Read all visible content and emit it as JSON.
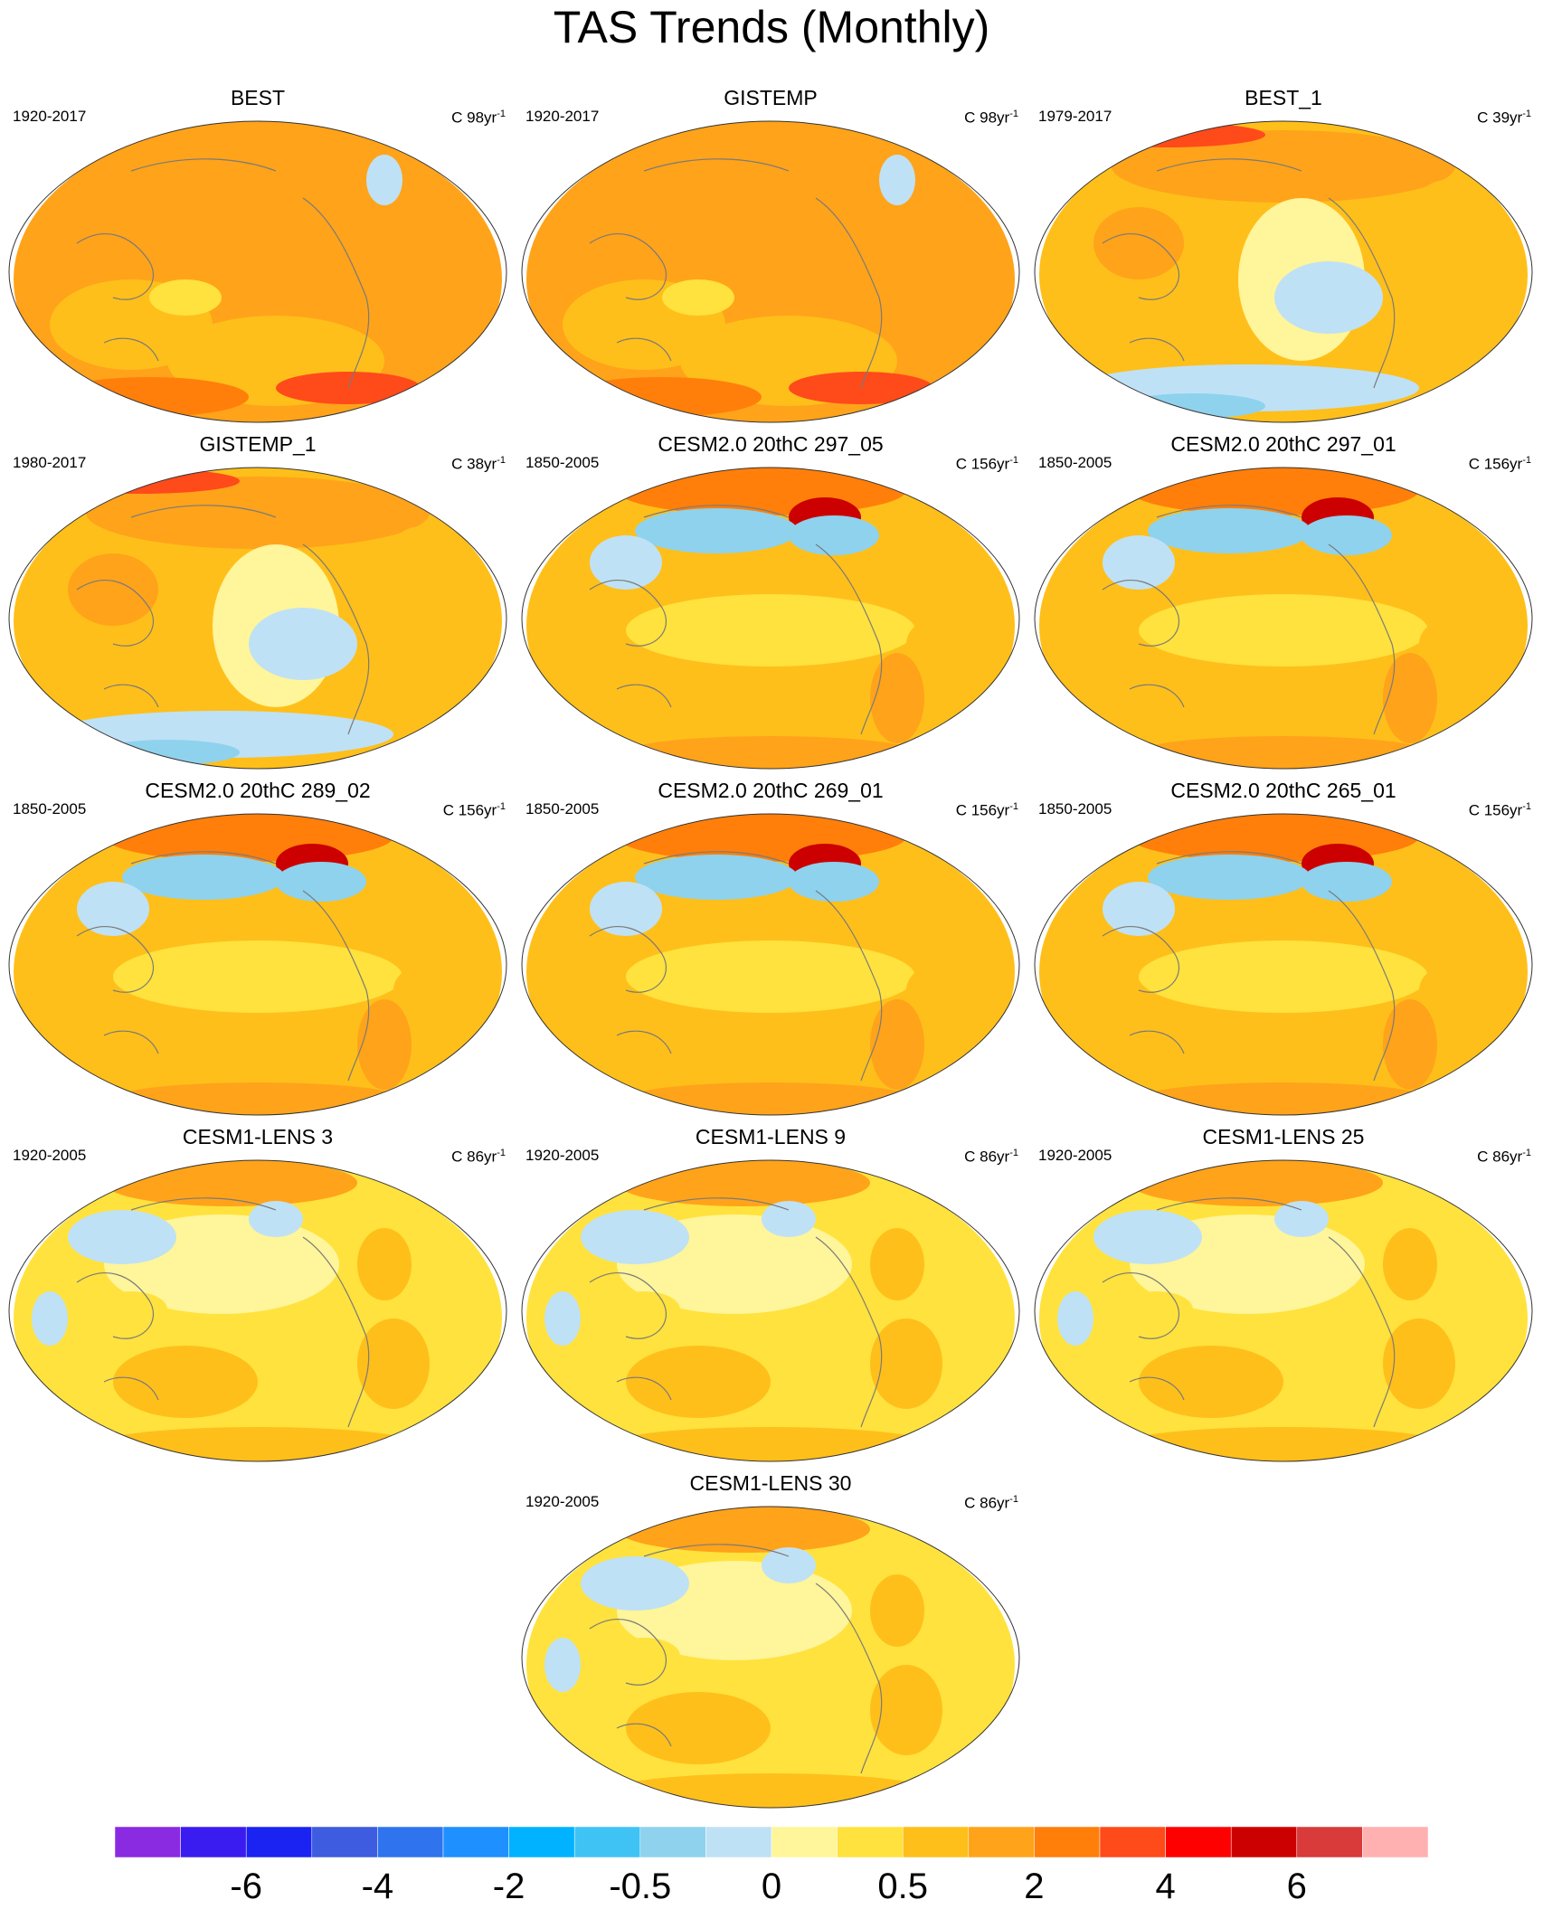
{
  "title": "TAS Trends (Monthly)",
  "chart_data": {
    "type": "heatmap",
    "description_units": "C",
    "panels": [
      {
        "name": "BEST",
        "years": "1920-2017",
        "units_prefix": "C 98yr",
        "units_exp": "-1",
        "pattern": "obs"
      },
      {
        "name": "GISTEMP",
        "years": "1920-2017",
        "units_prefix": "C 98yr",
        "units_exp": "-1",
        "pattern": "obs"
      },
      {
        "name": "BEST_1",
        "years": "1979-2017",
        "units_prefix": "C 39yr",
        "units_exp": "-1",
        "pattern": "recent"
      },
      {
        "name": "GISTEMP_1",
        "years": "1980-2017",
        "units_prefix": "C 38yr",
        "units_exp": "-1",
        "pattern": "recent"
      },
      {
        "name": "CESM2.0 20thC 297_05",
        "years": "1850-2005",
        "units_prefix": "C 156yr",
        "units_exp": "-1",
        "pattern": "cesm2"
      },
      {
        "name": "CESM2.0 20thC 297_01",
        "years": "1850-2005",
        "units_prefix": "C 156yr",
        "units_exp": "-1",
        "pattern": "cesm2"
      },
      {
        "name": "CESM2.0 20thC 289_02",
        "years": "1850-2005",
        "units_prefix": "C 156yr",
        "units_exp": "-1",
        "pattern": "cesm2"
      },
      {
        "name": "CESM2.0 20thC 269_01",
        "years": "1850-2005",
        "units_prefix": "C 156yr",
        "units_exp": "-1",
        "pattern": "cesm2"
      },
      {
        "name": "CESM2.0 20thC 265_01",
        "years": "1850-2005",
        "units_prefix": "C 156yr",
        "units_exp": "-1",
        "pattern": "cesm2"
      },
      {
        "name": "CESM1-LENS 3",
        "years": "1920-2005",
        "units_prefix": "C 86yr",
        "units_exp": "-1",
        "pattern": "lens"
      },
      {
        "name": "CESM1-LENS 9",
        "years": "1920-2005",
        "units_prefix": "C 86yr",
        "units_exp": "-1",
        "pattern": "lens"
      },
      {
        "name": "CESM1-LENS 25",
        "years": "1920-2005",
        "units_prefix": "C 86yr",
        "units_exp": "-1",
        "pattern": "lens"
      },
      {
        "name": "CESM1-LENS 30",
        "years": "1920-2005",
        "units_prefix": "C 86yr",
        "units_exp": "-1",
        "pattern": "lens"
      }
    ],
    "colorbar": {
      "colors": [
        "#8a2be2",
        "#3b1cf0",
        "#1a23f2",
        "#3d5ce0",
        "#2f74ee",
        "#1e90ff",
        "#00b2ff",
        "#3fc3f5",
        "#8ed2ee",
        "#bfe1f5",
        "#fff59a",
        "#ffe23d",
        "#ffbf1a",
        "#ffa31a",
        "#ff7f0a",
        "#ff4a1a",
        "#ff0000",
        "#cc0000",
        "#d93a3a",
        "#ffb0b0"
      ],
      "tick_labels": [
        "-6",
        "-4",
        "-2",
        "-0.5",
        "0",
        "0.5",
        "2",
        "4",
        "6"
      ],
      "tick_boundary_index": [
        2,
        4,
        6,
        8,
        10,
        12,
        14,
        16,
        18
      ]
    }
  }
}
